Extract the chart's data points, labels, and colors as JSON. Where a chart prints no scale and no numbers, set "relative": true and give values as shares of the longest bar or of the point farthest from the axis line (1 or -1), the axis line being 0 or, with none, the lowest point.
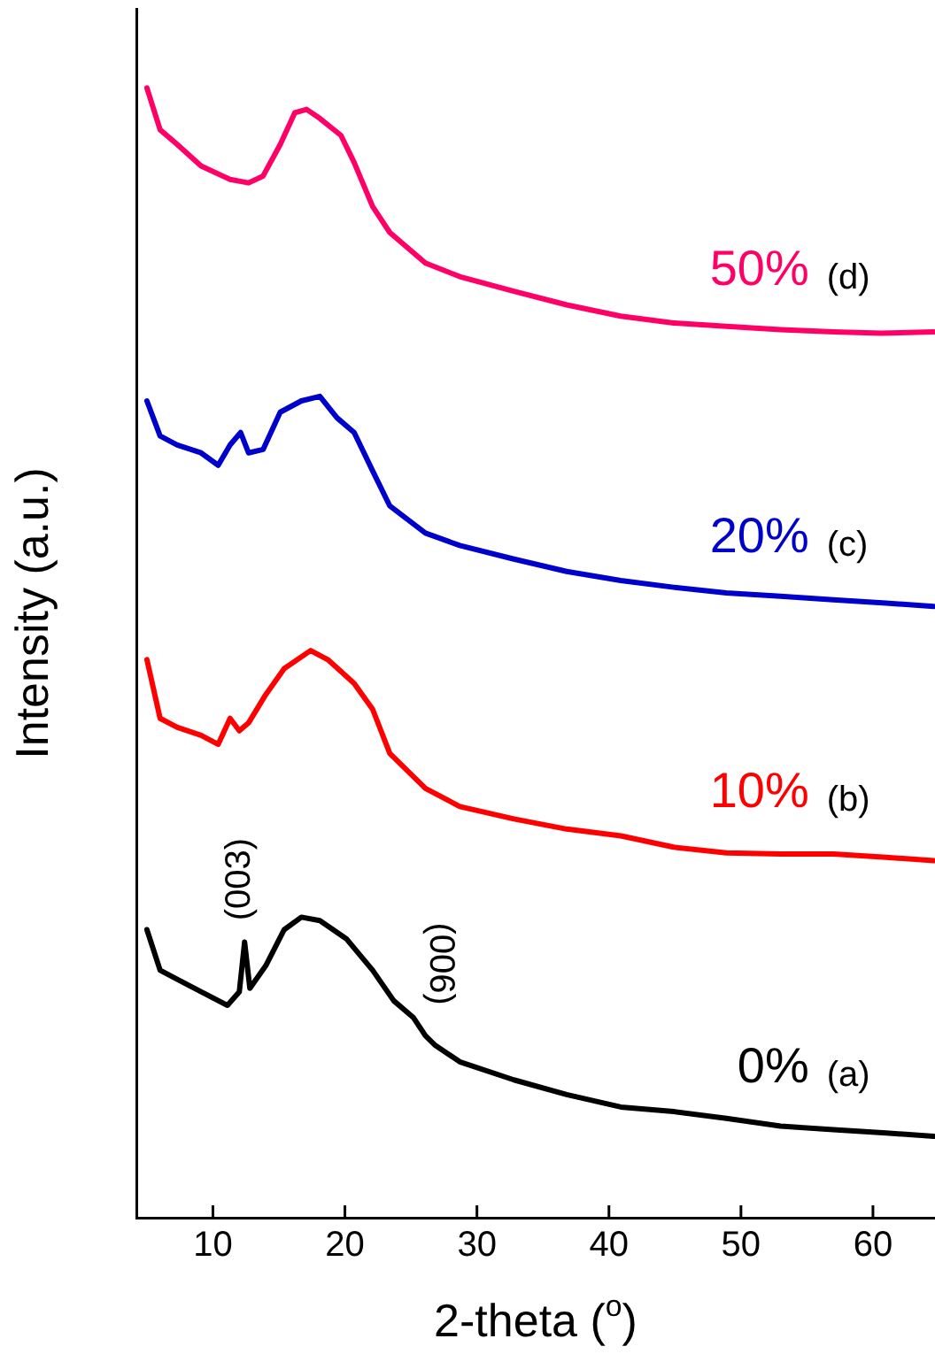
{
  "chart_data": {
    "type": "line",
    "relative": true,
    "xlabel": "2-theta ($^{o}$)",
    "ylabel": "Intensity (a.u.)",
    "xlim": [
      4.2,
      64.7
    ],
    "xticks": [
      10,
      20,
      30,
      40,
      50,
      60
    ],
    "grid": false,
    "legend": false,
    "marker": "none",
    "line_style": "solid",
    "series": [
      {
        "name": "0%",
        "color": "#000000",
        "x": [
          5.0,
          6.0,
          7.3,
          9.1,
          11.1,
          12.0,
          12.4,
          12.8,
          14.0,
          15.4,
          16.7,
          18.1,
          20.1,
          22.1,
          23.7,
          25.2,
          26.1,
          26.8,
          28.7,
          32.8,
          36.8,
          40.9,
          44.9,
          48.9,
          53.0,
          57.0,
          61.0,
          64.6
        ],
        "values": [
          0.255,
          0.219,
          0.211,
          0.2,
          0.188,
          0.2,
          0.244,
          0.203,
          0.223,
          0.255,
          0.266,
          0.263,
          0.247,
          0.219,
          0.192,
          0.177,
          0.161,
          0.153,
          0.138,
          0.122,
          0.109,
          0.098,
          0.094,
          0.088,
          0.081,
          0.078,
          0.075,
          0.072
        ]
      },
      {
        "name": "10%",
        "color": "#ff0000",
        "x": [
          5.0,
          6.0,
          7.3,
          9.1,
          10.4,
          11.3,
          12.0,
          12.7,
          14.0,
          15.4,
          17.4,
          18.7,
          20.7,
          22.1,
          23.4,
          26.1,
          28.7,
          32.8,
          36.8,
          40.9,
          44.9,
          48.9,
          53.0,
          57.0,
          61.0,
          64.6
        ],
        "values": [
          0.494,
          0.442,
          0.434,
          0.427,
          0.419,
          0.442,
          0.431,
          0.438,
          0.463,
          0.486,
          0.502,
          0.494,
          0.473,
          0.45,
          0.411,
          0.38,
          0.364,
          0.353,
          0.344,
          0.338,
          0.328,
          0.323,
          0.322,
          0.322,
          0.319,
          0.316
        ]
      },
      {
        "name": "20%",
        "color": "#0000cc",
        "x": [
          5.0,
          6.0,
          7.3,
          9.1,
          10.4,
          11.3,
          12.1,
          12.7,
          13.8,
          15.1,
          16.7,
          18.1,
          19.4,
          20.7,
          22.1,
          23.4,
          26.1,
          28.7,
          32.8,
          36.8,
          40.9,
          44.9,
          48.9,
          53.0,
          57.0,
          61.0,
          64.6
        ],
        "values": [
          0.723,
          0.692,
          0.684,
          0.677,
          0.666,
          0.684,
          0.695,
          0.677,
          0.68,
          0.713,
          0.723,
          0.727,
          0.708,
          0.695,
          0.661,
          0.63,
          0.606,
          0.595,
          0.583,
          0.572,
          0.564,
          0.558,
          0.553,
          0.55,
          0.547,
          0.544,
          0.541
        ]
      },
      {
        "name": "50%",
        "color": "#ff0066",
        "x": [
          5.0,
          6.0,
          7.3,
          9.1,
          11.3,
          12.7,
          13.8,
          15.1,
          16.2,
          17.1,
          18.1,
          19.7,
          20.7,
          22.1,
          23.4,
          26.1,
          28.7,
          32.8,
          36.8,
          40.9,
          44.9,
          48.9,
          53.0,
          57.0,
          60.6,
          64.6
        ],
        "values": [
          1.0,
          0.963,
          0.95,
          0.931,
          0.919,
          0.916,
          0.922,
          0.95,
          0.978,
          0.981,
          0.973,
          0.958,
          0.934,
          0.895,
          0.872,
          0.845,
          0.833,
          0.82,
          0.808,
          0.798,
          0.792,
          0.789,
          0.786,
          0.784,
          0.783,
          0.784
        ]
      }
    ],
    "annotations": [
      "(003)",
      "(006)",
      "(a)",
      "(b)",
      "(c)",
      "(d)"
    ]
  }
}
